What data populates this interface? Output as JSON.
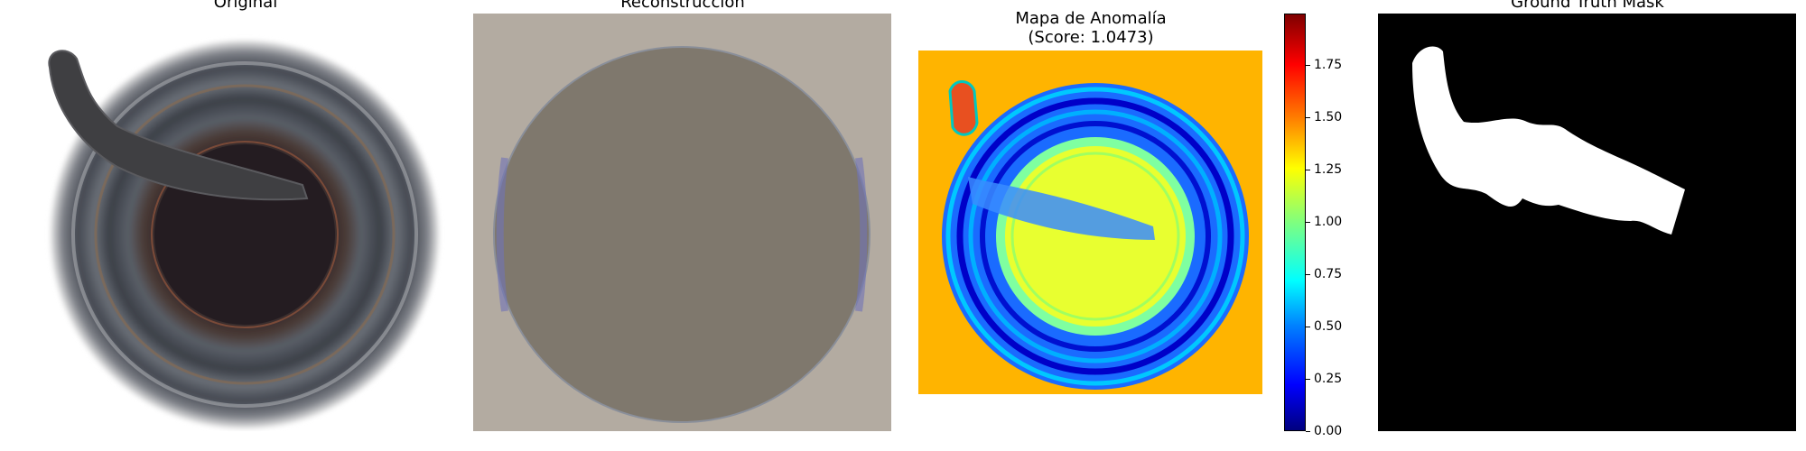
{
  "panels": [
    {
      "title": "Original"
    },
    {
      "title": "Reconstrucción"
    },
    {
      "title_line1": "Mapa de Anomalía",
      "title_line2": "(Score: 1.0473)"
    },
    {
      "title": "Ground Truth Mask"
    }
  ],
  "colorbar": {
    "colormap": "jet",
    "range": [
      0,
      2
    ],
    "ticks": [
      "0.00",
      "0.25",
      "0.50",
      "0.75",
      "1.00",
      "1.25",
      "1.50",
      "1.75"
    ]
  },
  "colors": {
    "reconstruction_background": "#b3aba1",
    "reconstruction_disc": "#7f786d",
    "anomaly_background": "#ffb400",
    "mask_background": "#000000",
    "mask_foreground": "#ffffff"
  }
}
